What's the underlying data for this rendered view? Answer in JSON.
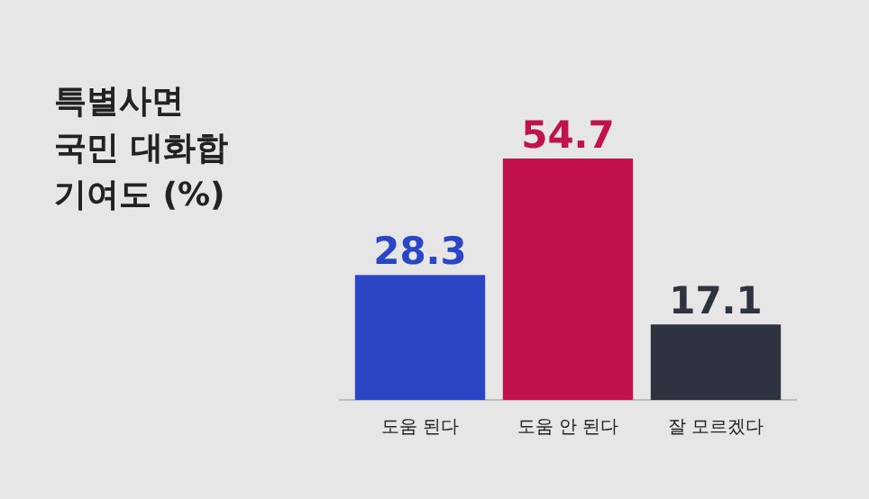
{
  "chart_data": {
    "type": "bar",
    "title": "특별사면 국민 대화합 기여도 (%)",
    "categories": [
      "도움 된다",
      "도움 안 된다",
      "잘 모르겠다"
    ],
    "values": [
      28.3,
      54.7,
      17.1
    ],
    "colors": [
      "#2a46c4",
      "#c2124c",
      "#2e333f"
    ],
    "data_labels": true
  }
}
